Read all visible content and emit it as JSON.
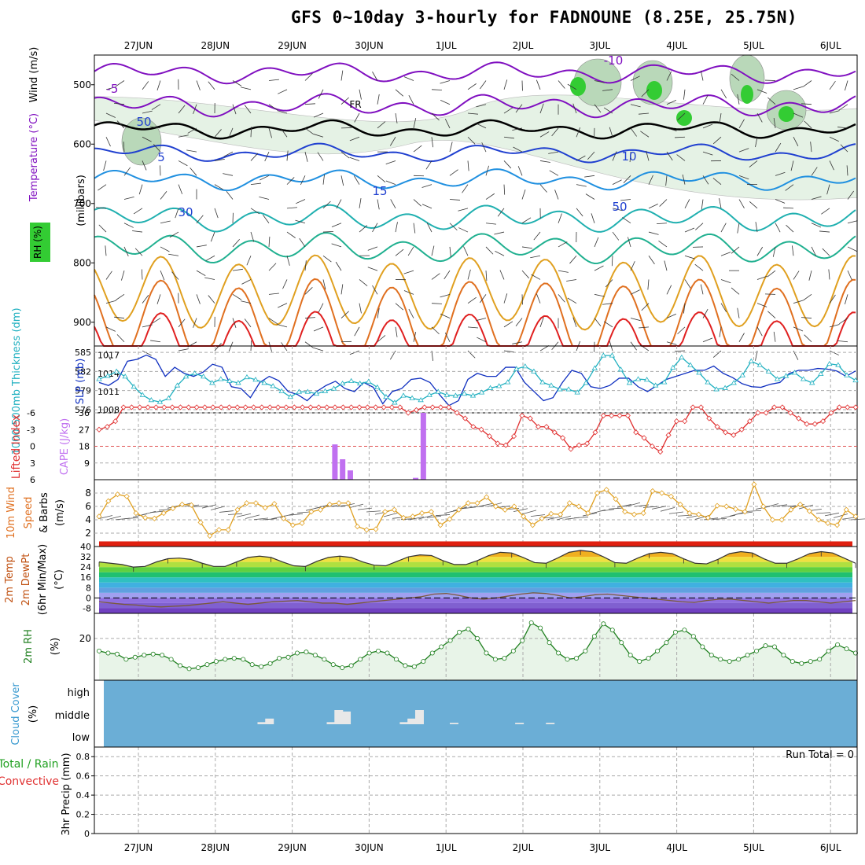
{
  "title": "GFS 0~10day 3-hourly for FADNOUNE (8.25E, 25.75N)",
  "colors": {
    "temp_line_cold": "#8010c0",
    "temp_line_mid": "#2040d0",
    "temp_line_warm": "#e0a020",
    "temp_line_hot": "#e02020",
    "slp": "#1030c0",
    "thickness": "#20b0c0",
    "lifted_index": "#e03030",
    "cape": "#c070f0",
    "wind10m": "#e0a020",
    "rh": "#208020",
    "cloud_bg": "#6baed6",
    "cloud_bar": "#e8e8e8"
  },
  "chart_data": [
    {
      "id": "upper-air",
      "type": "heatmap",
      "ylabel": [
        "RH (%)",
        "Temperature (°C)",
        "Wind (m/s)",
        "(millibars)"
      ],
      "y_ticks": [
        500,
        600,
        700,
        800,
        900
      ],
      "contour_labels": [
        "-10",
        "-5",
        "FR",
        "5",
        "10",
        "15",
        "30",
        "50",
        "50"
      ],
      "rh_legend": "RH (%)"
    },
    {
      "id": "slp-thickness",
      "type": "line",
      "ylabel_left": "1000-500mb Thickness (dm)",
      "ylabel_right": "SLP (mb)",
      "left_ticks": [
        576,
        579,
        582,
        585
      ],
      "right_ticks": [
        1008,
        1011,
        1014,
        1017
      ],
      "series": [
        {
          "name": "SLP (mb)",
          "values": [
            1012.5,
            1012,
            1013,
            1016,
            1016.3,
            1017,
            1016.3,
            1013.5,
            1015,
            1014,
            1013.5,
            1014.2,
            1015.5,
            1015,
            1011.8,
            1011.5,
            1010,
            1012.5,
            1013.5,
            1012.8,
            1011,
            1010.5,
            1009.5,
            1011,
            1012,
            1012.7,
            1011.5,
            1011,
            1012.5,
            1011.7,
            1009,
            1011,
            1011.5,
            1013,
            1013.2,
            1012.5,
            1010.5,
            1008.7,
            1009.5,
            1013,
            1014,
            1013.5,
            1013.5,
            1015,
            1015,
            1012.5,
            1011,
            1009.5,
            1010,
            1012.5,
            1014.5,
            1014,
            1011.8,
            1011.5,
            1012,
            1013.2,
            1013.2,
            1011.8,
            1011,
            1012,
            1013,
            1013.5,
            1014,
            1014.5,
            1014.5,
            1015.2,
            1014,
            1013.3,
            1012.3,
            1011.8,
            1011.7,
            1012.2,
            1012.5,
            1014,
            1014.5,
            1014.5,
            1014.8,
            1014.7,
            1014.4,
            1013.5,
            1014.4
          ]
        },
        {
          "name": "1000-500mb Thickness (dm)",
          "values": [
            580.8,
            581.3,
            582,
            581.2,
            579.6,
            578.3,
            577.5,
            577.2,
            577.8,
            579.8,
            581.2,
            581.7,
            581.2,
            580.2,
            580.8,
            580.5,
            580.2,
            581.1,
            580.7,
            580.2,
            579.7,
            578.9,
            578,
            578.8,
            578.8,
            578.5,
            578.9,
            579.3,
            580.1,
            580.5,
            580.1,
            580.4,
            579.5,
            578,
            577.1,
            578.2,
            577.8,
            577.5,
            578.3,
            578.8,
            578.3,
            578.2,
            578.5,
            578.2,
            578.7,
            579.4,
            579.7,
            580.3,
            582.4,
            582.8,
            582,
            580.3,
            579.8,
            579.2,
            579.2,
            578.7,
            580.2,
            582.5,
            584.5,
            584.5,
            582.3,
            580.2,
            580.8,
            580.7,
            579.8,
            580.3,
            582.6,
            584.2,
            583,
            581.8,
            580.3,
            579.2,
            579.4,
            580.2,
            581.4,
            583.6,
            583,
            582,
            580.8,
            581.3,
            581.8,
            580.8,
            580.2,
            581.6,
            583.2,
            583,
            581.4,
            580.6
          ]
        }
      ]
    },
    {
      "id": "li-cape",
      "type": "line",
      "ylabel_left": "Lifted Index",
      "ylabel_right": "CAPE (J/kg)",
      "left_ticks": [
        "-6",
        "-3",
        "0",
        "3",
        "6"
      ],
      "right_ticks": [
        9,
        18,
        27,
        36
      ],
      "series": [
        {
          "name": "Lifted Index",
          "values": [
            3,
            3.5,
            4.5,
            7,
            7,
            7,
            7,
            7,
            7,
            7,
            7,
            7,
            7,
            7,
            7,
            7,
            7,
            7,
            7,
            7,
            7,
            7,
            7,
            7,
            7,
            7,
            7,
            7,
            7,
            7,
            7,
            7,
            7,
            7,
            7,
            7,
            7,
            7,
            6,
            6.5,
            7,
            7,
            7,
            7,
            6,
            5,
            3.5,
            3,
            1.8,
            0.5,
            0.2,
            1.8,
            5.5,
            5,
            3.5,
            3.5,
            2.5,
            1.5,
            -0.5,
            0.2,
            0.5,
            2.5,
            5.5,
            5.5,
            5.5,
            5.5,
            2.5,
            1.5,
            0,
            -1,
            2,
            4.5,
            4.5,
            7,
            7,
            5,
            3.5,
            2.5,
            2,
            3,
            4.5,
            6,
            6,
            7,
            7,
            6,
            5,
            4,
            4,
            4.5,
            6,
            7,
            7,
            7
          ]
        },
        {
          "name": "CAPE (J/kg)",
          "bars": [
            [
              2.55,
              19
            ],
            [
              2.65,
              11
            ],
            [
              2.75,
              5
            ],
            [
              3.6,
              1
            ],
            [
              3.7,
              36
            ]
          ]
        }
      ]
    },
    {
      "id": "wind10m",
      "type": "line",
      "ylabel": [
        "10m Wind",
        "Speed",
        "& Barbs",
        "(m/s)"
      ],
      "y_ticks": [
        2,
        4,
        6,
        8
      ],
      "series": [
        {
          "name": "10m Wind Speed (m/s)",
          "values": [
            4.5,
            6.8,
            7.8,
            7.5,
            5,
            4.3,
            4.2,
            5,
            5.7,
            6.3,
            6.2,
            3.6,
            1.6,
            2.5,
            2.5,
            5.5,
            6.5,
            6.5,
            5.8,
            6.4,
            4.2,
            3.2,
            3.5,
            5.2,
            5.5,
            6.3,
            6.5,
            6.5,
            3,
            2.5,
            2.6,
            5.2,
            5.5,
            4.3,
            4.5,
            5,
            5.2,
            3.2,
            4.1,
            5.5,
            6.5,
            6.5,
            7.4,
            6,
            5.5,
            6,
            4.5,
            3.2,
            4.2,
            4.9,
            4.8,
            6.5,
            6,
            5,
            8,
            8.5,
            7.1,
            5.2,
            4.8,
            5,
            8.3,
            8,
            7.5,
            6.3,
            5,
            4.8,
            4.3,
            6.1,
            6,
            5.6,
            5.2,
            9.3,
            6,
            4,
            4,
            5.5,
            6.3,
            5.3,
            4,
            3.5,
            3.2,
            5.5,
            4.5
          ]
        }
      ]
    },
    {
      "id": "temp2m",
      "type": "area",
      "ylabel": [
        "2m Temp",
        "2m DewPt",
        "(6hr Min/Max)",
        "(°C)"
      ],
      "y_ticks": [
        -8,
        0,
        8,
        16,
        24,
        32,
        40
      ],
      "series": [
        {
          "name": "2m Temp",
          "values": [
            28,
            27,
            26,
            24,
            24.5,
            28,
            30.5,
            31,
            30,
            27,
            24.5,
            24.5,
            28,
            31.5,
            32.5,
            31.5,
            28,
            25,
            24.5,
            28.5,
            31.5,
            32.5,
            31.5,
            28,
            25.5,
            25,
            28.5,
            32,
            33.5,
            33,
            29,
            26,
            26,
            29,
            33,
            35.5,
            35,
            31.5,
            27.5,
            27,
            31,
            35.5,
            37,
            36,
            32,
            27.5,
            27,
            31,
            34.5,
            35.5,
            34.5,
            30.5,
            27,
            26.5,
            30,
            34.5,
            36,
            35,
            30.5,
            27,
            27,
            30.5,
            34.5,
            36,
            35,
            31,
            27
          ]
        },
        {
          "name": "2m DewPt",
          "values": [
            -3,
            -4,
            -5,
            -5.5,
            -6.5,
            -7,
            -6.5,
            -6,
            -5,
            -4,
            -3,
            -4,
            -5,
            -4,
            -3,
            -2.5,
            -2,
            -3,
            -4,
            -4,
            -5,
            -4,
            -3,
            -2,
            -1,
            0,
            1,
            3,
            3.5,
            2,
            0,
            -1,
            0,
            1.5,
            3,
            4,
            3.5,
            2,
            0,
            1,
            2.5,
            3,
            2,
            1,
            0,
            -1,
            -2,
            -3,
            -3.5,
            -2,
            -1,
            -1,
            -2,
            -3,
            -4,
            -3,
            -2,
            -2,
            -3,
            -4,
            -3,
            -2
          ]
        }
      ]
    },
    {
      "id": "rh2m",
      "type": "area",
      "ylabel": [
        "2m RH",
        "(%)"
      ],
      "y_ticks": [
        20
      ],
      "series": [
        {
          "name": "2m RH (%)",
          "values": [
            14,
            13,
            12.5,
            10,
            11,
            12,
            12.5,
            12,
            10,
            7,
            5.5,
            6,
            7.5,
            9,
            10,
            10.5,
            10,
            7.5,
            6.5,
            8,
            10.5,
            11,
            13,
            13.5,
            12,
            10,
            7.5,
            6,
            7,
            10,
            13,
            14,
            13,
            10,
            7,
            6.5,
            9,
            13,
            16,
            19,
            23,
            24.5,
            20,
            13,
            10,
            10.5,
            14,
            19,
            27.5,
            25,
            18,
            13,
            10,
            10.5,
            14,
            21,
            27,
            24,
            18,
            12,
            9,
            10.5,
            14,
            18,
            23,
            24,
            21,
            16,
            12,
            10,
            9,
            10,
            12,
            14,
            16.5,
            16,
            12,
            9,
            8,
            9,
            10,
            14,
            17,
            15,
            13
          ]
        }
      ]
    },
    {
      "id": "cloud",
      "type": "bar",
      "ylabel": [
        "Cloud Cover",
        "(%)"
      ],
      "y_ticks": [
        "high",
        "middle",
        "low"
      ],
      "series": [
        {
          "name": "middle",
          "bars": [
            [
              1.6,
              3
            ],
            [
              1.7,
              8
            ],
            [
              2.5,
              3
            ],
            [
              2.6,
              20
            ],
            [
              2.7,
              18
            ],
            [
              3.45,
              3
            ],
            [
              3.55,
              8
            ],
            [
              3.65,
              20
            ],
            [
              4.1,
              2
            ],
            [
              4.95,
              2
            ],
            [
              5.35,
              2
            ]
          ]
        }
      ]
    },
    {
      "id": "precip",
      "type": "bar",
      "ylabel": [
        "3hr Precip (mm)"
      ],
      "ylabel_left": [
        "Total / Rain",
        "Convective"
      ],
      "y_ticks": [
        "0",
        "0.2",
        "0.4",
        "0.6",
        "0.8"
      ],
      "annotation": "Run Total = 0",
      "series": []
    }
  ],
  "x_axis": {
    "top_labels": [
      "27JUN",
      "28JUN",
      "29JUN",
      "30JUN",
      "1JUL",
      "2JUL",
      "3JUL",
      "4JUL",
      "5JUL",
      "6JUL"
    ],
    "bottom_labels": [
      "27JUN",
      "28JUN",
      "29JUN",
      "30JUN",
      "1JUL",
      "2JUL",
      "3JUL",
      "4JUL",
      "5JUL",
      "6JUL"
    ]
  }
}
